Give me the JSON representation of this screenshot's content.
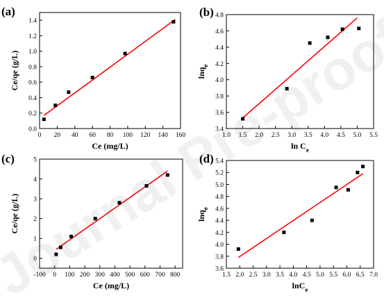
{
  "figure": {
    "watermark": "Journal Pre-proof"
  },
  "chart_data": [
    {
      "panel_label": "(a)",
      "type": "scatter",
      "xlabel": "Ce (mg/L)",
      "ylabel": "Ce/qe (g/L)",
      "xlim": [
        0,
        160
      ],
      "ylim": [
        0,
        1.5
      ],
      "xticks": [
        "0",
        "20",
        "40",
        "60",
        "80",
        "100",
        "120",
        "140",
        "160"
      ],
      "yticks": [
        "0.0",
        "0.2",
        "0.4",
        "0.6",
        "0.8",
        "1.0",
        "1.2",
        "1.4"
      ],
      "x": [
        5,
        18,
        33,
        60,
        97,
        152
      ],
      "y": [
        0.12,
        0.3,
        0.47,
        0.66,
        0.97,
        1.38
      ],
      "fit": {
        "x": [
          5,
          154
        ],
        "y": [
          0.17,
          1.41
        ]
      },
      "point_color": "#000000",
      "line_color": "#ff0000"
    },
    {
      "panel_label": "(b)",
      "type": "scatter",
      "xlabel": "ln Ce",
      "ylabel": "lnqe",
      "xlim": [
        1.0,
        5.5
      ],
      "ylim": [
        3.4,
        4.8
      ],
      "xticks": [
        "1.0",
        "1.5",
        "2.0",
        "2.5",
        "3.0",
        "3.5",
        "4.0",
        "4.5",
        "5.0",
        "5.5"
      ],
      "yticks": [
        "3.4",
        "3.6",
        "3.8",
        "4.0",
        "4.2",
        "4.4",
        "4.6",
        "4.8"
      ],
      "x": [
        1.5,
        2.85,
        3.55,
        4.1,
        4.55,
        5.05
      ],
      "y": [
        3.52,
        3.89,
        4.45,
        4.52,
        4.62,
        4.63
      ],
      "fit": {
        "x": [
          1.5,
          5.0
        ],
        "y": [
          3.53,
          4.76
        ]
      },
      "point_color": "#000000",
      "line_color": "#ff0000"
    },
    {
      "panel_label": "(c)",
      "type": "scatter",
      "xlabel": "Ce (mg/L)",
      "ylabel": "Ce/qe (g/L)",
      "xlim": [
        -100,
        850
      ],
      "ylim": [
        -0.5,
        5
      ],
      "xticks": [
        "-100",
        "0",
        "100",
        "200",
        "300",
        "400",
        "500",
        "600",
        "700",
        "800"
      ],
      "yticks": [
        "0",
        "1",
        "2",
        "3",
        "4",
        "5"
      ],
      "x": [
        10,
        40,
        110,
        270,
        430,
        610,
        750
      ],
      "y": [
        0.2,
        0.55,
        1.1,
        2.0,
        2.8,
        3.65,
        4.2
      ],
      "fit": {
        "x": [
          10,
          750
        ],
        "y": [
          0.45,
          4.4
        ]
      },
      "point_color": "#000000",
      "line_color": "#ff0000"
    },
    {
      "panel_label": "(d)",
      "type": "scatter",
      "xlabel": "lnCe",
      "ylabel": "lnqe",
      "xlim": [
        1.5,
        7.0
      ],
      "ylim": [
        3.6,
        5.4
      ],
      "xticks": [
        "1.5",
        "2.0",
        "2.5",
        "3.0",
        "3.5",
        "4.0",
        "4.5",
        "5.0",
        "5.5",
        "6.0",
        "6.5",
        "7.0"
      ],
      "yticks": [
        "3.6",
        "3.8",
        "4.0",
        "4.2",
        "4.4",
        "4.6",
        "4.8",
        "5.0",
        "5.2",
        "5.4"
      ],
      "x": [
        1.95,
        3.65,
        4.7,
        5.6,
        6.05,
        6.4,
        6.6
      ],
      "y": [
        3.92,
        4.2,
        4.4,
        4.95,
        4.91,
        5.2,
        5.3
      ],
      "fit": {
        "x": [
          1.95,
          6.6
        ],
        "y": [
          3.78,
          5.18
        ]
      },
      "point_color": "#000000",
      "line_color": "#ff0000"
    }
  ]
}
